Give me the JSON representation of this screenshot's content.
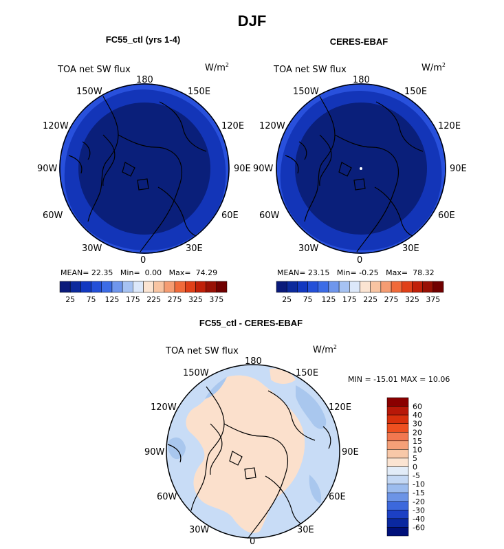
{
  "title": "DJF",
  "colors": {
    "deep": "#0a1f7a",
    "mid": "#1335b8",
    "light": "#2850dc",
    "diff_pos": "#fbe0cc",
    "diff_neg": "#c8dcf6",
    "diff_neg2": "#a9c7ee"
  },
  "longitude_labels": {
    "n": "180",
    "nnw": "150W",
    "wnw": "120W",
    "w": "90W",
    "wsw": "60W",
    "ssw": "30W",
    "s": "0",
    "sse": "30E",
    "ese": "60E",
    "e": "90E",
    "ene": "120E",
    "nne": "150E"
  },
  "panels": [
    {
      "id": "left",
      "title": "FC55_ctl (yrs 1-4)",
      "variable": "TOA net SW flux",
      "units_base": "W/m",
      "units_exp": "2",
      "stats": {
        "mean_label": "MEAN=",
        "mean": "22.35",
        "min_label": "Min=",
        "min": "0.00",
        "max_label": "Max=",
        "max": "74.29"
      }
    },
    {
      "id": "right",
      "title": "CERES-EBAF",
      "variable": "TOA net SW flux",
      "units_base": "W/m",
      "units_exp": "2",
      "stats": {
        "mean_label": "MEAN=",
        "mean": "23.15",
        "min_label": "Min=",
        "min": "-0.25",
        "max_label": "Max=",
        "max": "78.32"
      }
    },
    {
      "id": "diff",
      "title": "FC55_ctl - CERES-EBAF",
      "variable": "TOA net SW flux",
      "units_base": "W/m",
      "units_exp": "2",
      "stats_text": "MIN = -15.01 MAX =  10.06"
    }
  ],
  "chart_data": [
    {
      "type": "heatmap",
      "projection": "polar stereographic (north pole)",
      "title": "FC55_ctl (yrs 1-4)",
      "variable": "TOA net SW flux",
      "units": "W/m2",
      "mean": 22.35,
      "min": 0.0,
      "max": 74.29,
      "colorbar": {
        "levels": [
          25,
          50,
          75,
          100,
          125,
          150,
          175,
          200,
          225,
          250,
          275,
          300,
          325,
          350,
          375
        ],
        "tick_labels": [
          "25",
          "75",
          "125",
          "175",
          "225",
          "275",
          "325",
          "375"
        ],
        "colors": [
          "#0a1a7a",
          "#0c2a9c",
          "#1238c0",
          "#2450d8",
          "#3c6ce6",
          "#6f96ec",
          "#a6c2f2",
          "#dce8fa",
          "#fbe4d2",
          "#f8c4a2",
          "#f59c72",
          "#f06a3a",
          "#e04018",
          "#c02008",
          "#981004",
          "#700000"
        ]
      }
    },
    {
      "type": "heatmap",
      "projection": "polar stereographic (north pole)",
      "title": "CERES-EBAF",
      "variable": "TOA net SW flux",
      "units": "W/m2",
      "mean": 23.15,
      "min": -0.25,
      "max": 78.32,
      "colorbar": {
        "levels": [
          25,
          50,
          75,
          100,
          125,
          150,
          175,
          200,
          225,
          250,
          275,
          300,
          325,
          350,
          375
        ],
        "tick_labels": [
          "25",
          "75",
          "125",
          "175",
          "225",
          "275",
          "325",
          "375"
        ],
        "colors": [
          "#0a1a7a",
          "#0c2a9c",
          "#1238c0",
          "#2450d8",
          "#3c6ce6",
          "#6f96ec",
          "#a6c2f2",
          "#dce8fa",
          "#fbe4d2",
          "#f8c4a2",
          "#f59c72",
          "#f06a3a",
          "#e04018",
          "#c02008",
          "#981004",
          "#700000"
        ]
      }
    },
    {
      "type": "heatmap",
      "projection": "polar stereographic (north pole)",
      "title": "FC55_ctl - CERES-EBAF",
      "variable": "TOA net SW flux",
      "units": "W/m2",
      "min": -15.01,
      "max": 10.06,
      "colorbar": {
        "tick_labels": [
          "60",
          "40",
          "30",
          "20",
          "15",
          "10",
          "5",
          "0",
          "-5",
          "-10",
          "-15",
          "-20",
          "-30",
          "-40",
          "-60"
        ],
        "colors": [
          "#8a0000",
          "#b81808",
          "#d8300c",
          "#ee5020",
          "#f27850",
          "#f5a078",
          "#f8c8a8",
          "#fbe4d2",
          "#e2ecf8",
          "#c4d8f4",
          "#9cbcee",
          "#6c94e6",
          "#3c68dc",
          "#1c40c4",
          "#0a28a0",
          "#00107a"
        ]
      }
    }
  ]
}
